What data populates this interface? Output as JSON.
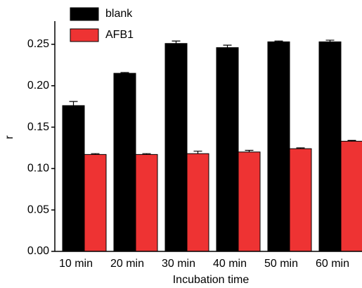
{
  "chart_data": {
    "type": "bar",
    "x_label": "Incubation time",
    "y_label": "r",
    "categories": [
      "10 min",
      "20 min",
      "30 min",
      "40 min",
      "50 min",
      "60 min"
    ],
    "series": [
      {
        "name": "blank",
        "color": "#000000",
        "values": [
          0.176,
          0.215,
          0.251,
          0.246,
          0.253,
          0.253
        ],
        "errors": [
          0.005,
          0.001,
          0.003,
          0.003,
          0.001,
          0.002
        ]
      },
      {
        "name": "AFB1",
        "color": "#ee3333",
        "values": [
          0.117,
          0.117,
          0.118,
          0.12,
          0.124,
          0.133
        ],
        "errors": [
          0.001,
          0.001,
          0.003,
          0.002,
          0.001,
          0.001
        ]
      }
    ],
    "ylim": [
      0,
      0.278
    ],
    "yticks": [
      {
        "value": 0,
        "label": "0.00"
      },
      0.05,
      {
        "value": 0.1,
        "label": "0.10"
      },
      0.15,
      {
        "value": 0.2,
        "label": "0.20"
      },
      0.25
    ],
    "legend": "top-left"
  }
}
